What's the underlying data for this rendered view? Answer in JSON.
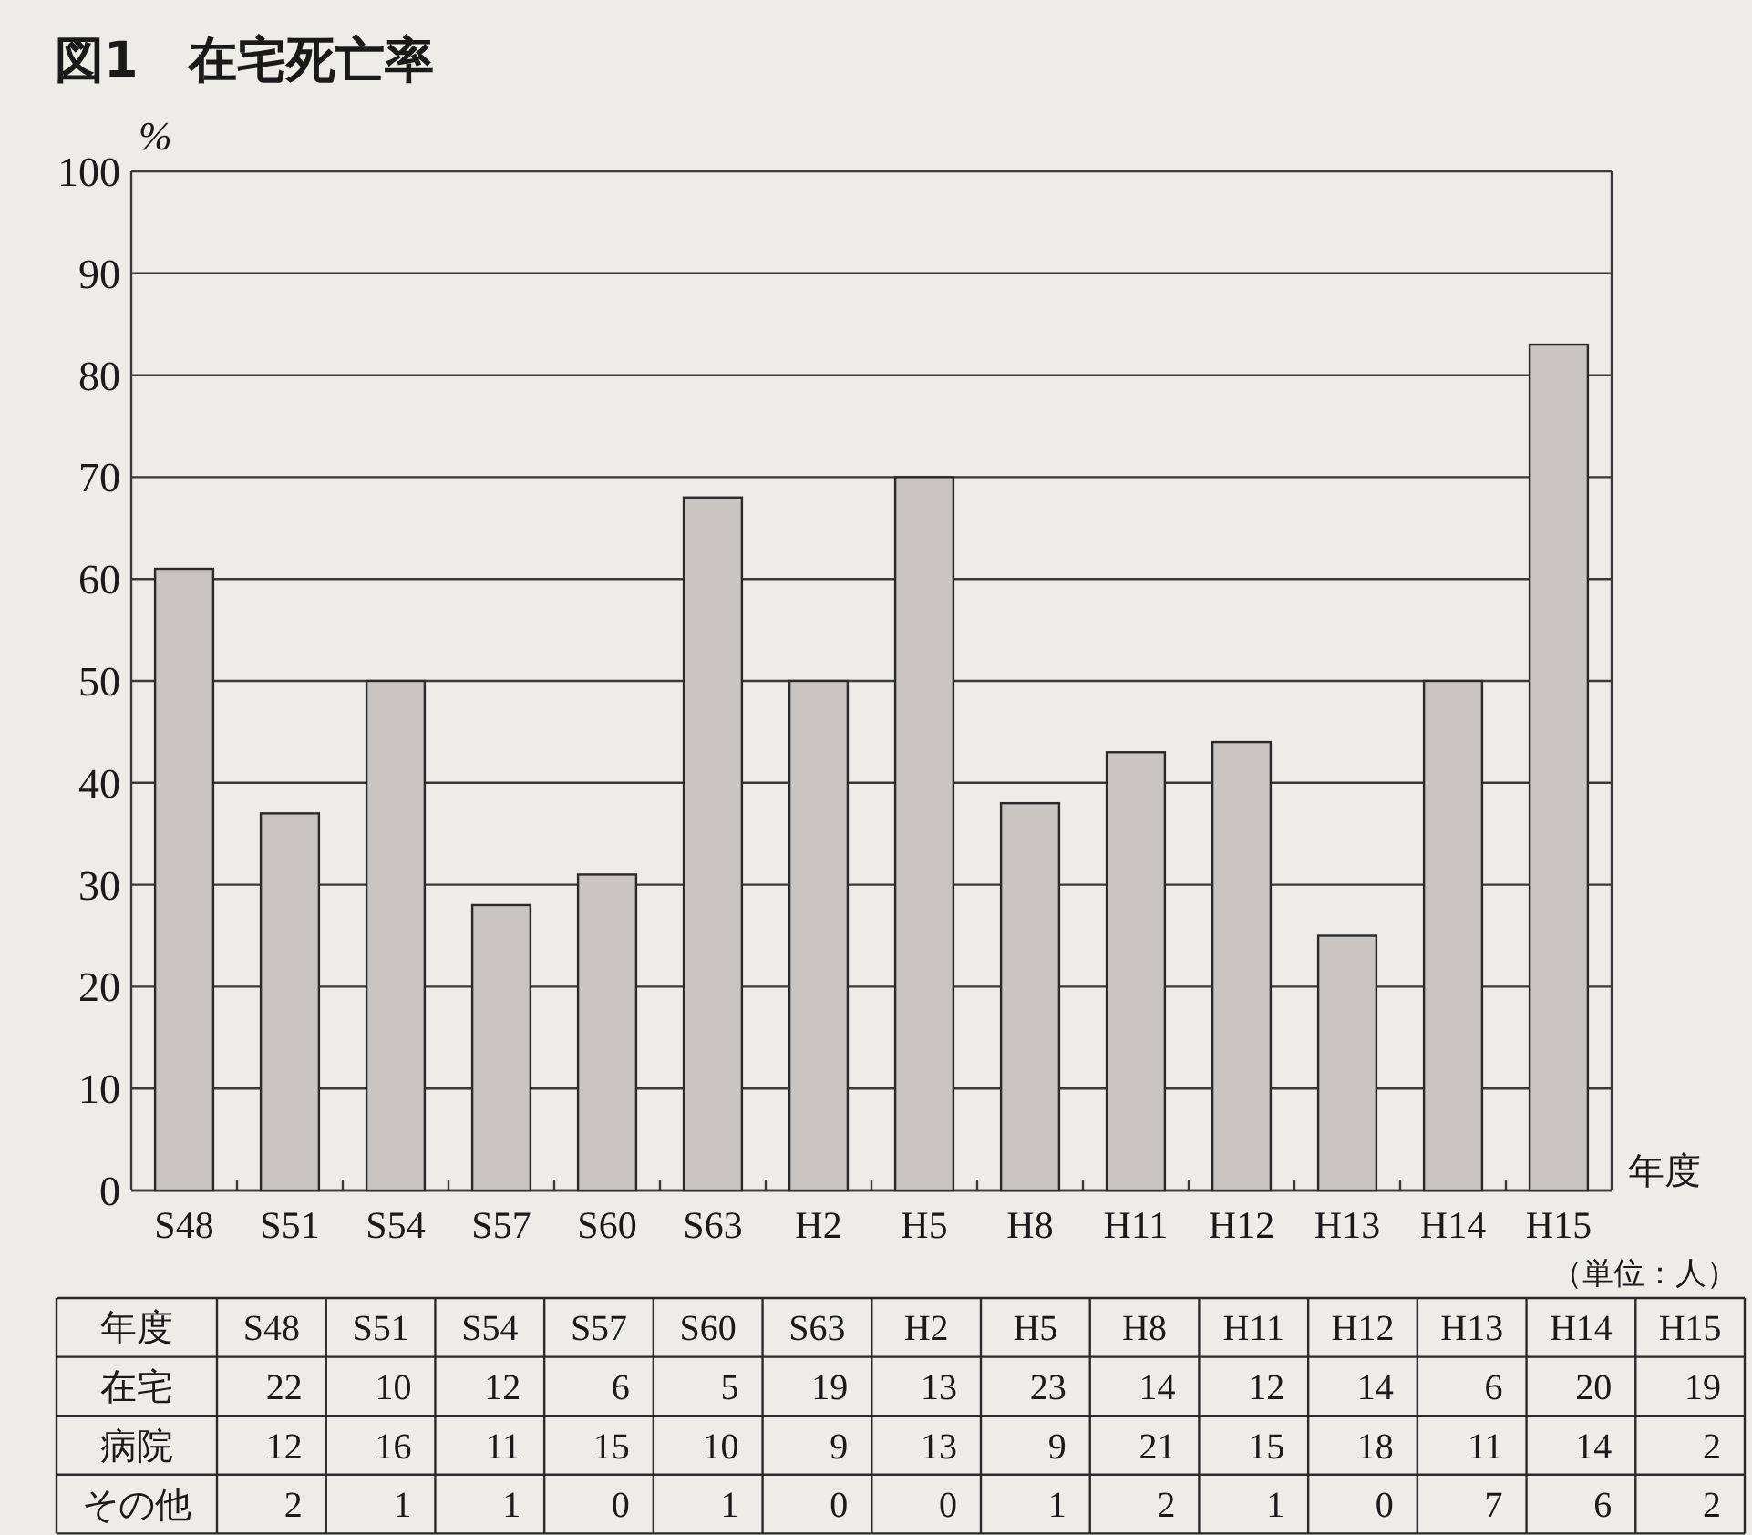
{
  "chart_data": [
    {
      "type": "bar",
      "title": "図1　在宅死亡率",
      "ylabel": "%",
      "xlabel": "年度",
      "categories": [
        "S48",
        "S51",
        "S54",
        "S57",
        "S60",
        "S63",
        "H2",
        "H5",
        "H8",
        "H11",
        "H12",
        "H13",
        "H14",
        "H15"
      ],
      "values": [
        61,
        37,
        50,
        28,
        31,
        68,
        50,
        70,
        38,
        43,
        44,
        25,
        50,
        83
      ],
      "color": "#c9c6c1",
      "ylim": [
        0,
        100
      ],
      "yticks": [
        0,
        10,
        20,
        30,
        40,
        50,
        60,
        70,
        80,
        90,
        100
      ],
      "grid": "y"
    },
    {
      "type": "other",
      "xlabel": "年度",
      "categories": [
        "S48",
        "S51",
        "S54",
        "S57",
        "S60",
        "S63",
        "H2",
        "H5",
        "H8",
        "H11",
        "H12",
        "H13",
        "H14",
        "H15"
      ],
      "series": [
        {
          "name": "在宅",
          "values": [
            22,
            10,
            12,
            6,
            5,
            19,
            13,
            23,
            14,
            12,
            14,
            6,
            20,
            19
          ]
        },
        {
          "name": "病院",
          "values": [
            12,
            16,
            11,
            15,
            10,
            9,
            13,
            9,
            21,
            15,
            18,
            11,
            14,
            2
          ]
        },
        {
          "name": "その他",
          "values": [
            2,
            1,
            1,
            0,
            1,
            0,
            0,
            1,
            2,
            1,
            0,
            7,
            6,
            2
          ]
        }
      ],
      "data_labels": true,
      "annotations": [
        "（単位：人）"
      ]
    }
  ]
}
